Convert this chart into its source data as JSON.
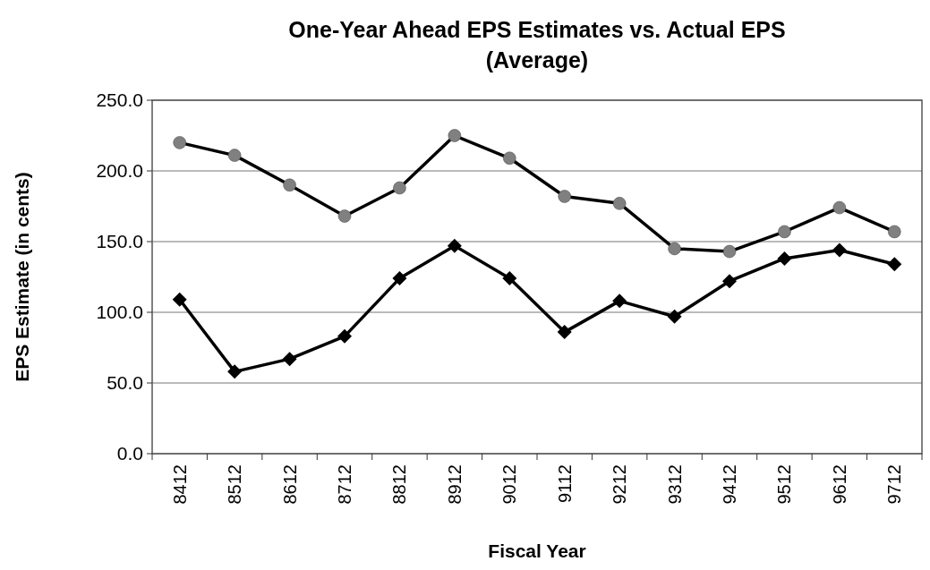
{
  "chart_data": {
    "type": "line",
    "title": "One-Year Ahead EPS Estimates vs. Actual EPS\n(Average)",
    "xlabel": "Fiscal Year",
    "ylabel": "EPS Estimate (in cents)",
    "categories": [
      "8412",
      "8512",
      "8612",
      "8712",
      "8812",
      "8912",
      "9012",
      "9112",
      "9212",
      "9312",
      "9412",
      "9512",
      "9612",
      "9712"
    ],
    "series": [
      {
        "color": "#808080",
        "marker": "circle",
        "values": [
          220,
          211,
          190,
          168,
          188,
          225,
          209,
          182,
          177,
          145,
          143,
          157,
          174,
          157
        ]
      },
      {
        "color": "#000000",
        "marker": "diamond",
        "values": [
          109,
          58,
          67,
          83,
          124,
          147,
          124,
          86,
          108,
          97,
          122,
          138,
          144,
          134
        ]
      }
    ],
    "ylim": [
      0,
      250
    ],
    "yticks": [
      {
        "value": 0,
        "label": "0.0"
      },
      {
        "value": 50,
        "label": "50.0"
      },
      {
        "value": 100,
        "label": "100.0"
      },
      {
        "value": 150,
        "label": "150.0"
      },
      {
        "value": 200,
        "label": "200.0"
      },
      {
        "value": 250,
        "label": "250.0"
      }
    ],
    "grid": "y",
    "line_style": "solid"
  }
}
